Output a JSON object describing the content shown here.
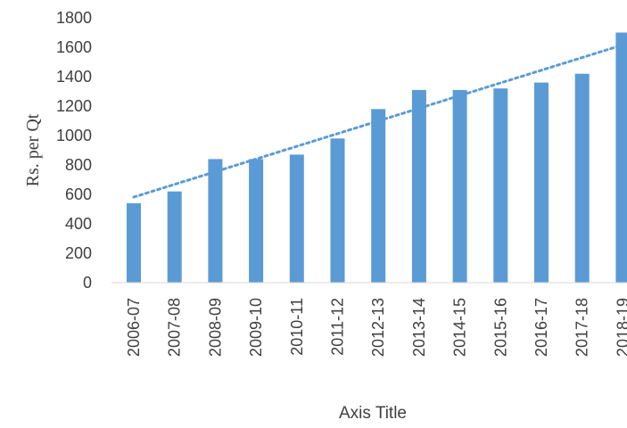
{
  "chart_data": {
    "type": "bar",
    "categories": [
      "2006-07",
      "2007-08",
      "2008-09",
      "2009-10",
      "2010-11",
      "2011-12",
      "2012-13",
      "2013-14",
      "2014-15",
      "2015-16",
      "2016-17",
      "2017-18",
      "2018-19"
    ],
    "series": [
      {
        "values": [
          540,
          620,
          840,
          840,
          870,
          980,
          1180,
          1310,
          1310,
          1320,
          1360,
          1420,
          1700
        ],
        "color": "#5b9bd5"
      }
    ],
    "trendline": {
      "type": "linear",
      "style": "dotted",
      "color": "#5b9bd5"
    },
    "xlabel": "Axis Title",
    "ylabel": "Rs. per Qt",
    "ylim": [
      0,
      1800
    ],
    "yticks": [
      0,
      200,
      400,
      600,
      800,
      1000,
      1200,
      1400,
      1600,
      1800
    ],
    "gridlines": false,
    "legend": "none"
  }
}
